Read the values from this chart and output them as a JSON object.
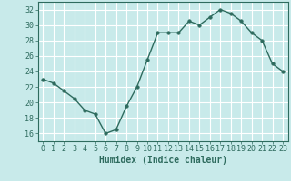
{
  "x": [
    0,
    1,
    2,
    3,
    4,
    5,
    6,
    7,
    8,
    9,
    10,
    11,
    12,
    13,
    14,
    15,
    16,
    17,
    18,
    19,
    20,
    21,
    22,
    23
  ],
  "y": [
    23,
    22.5,
    21.5,
    20.5,
    19,
    18.5,
    16,
    16.5,
    19.5,
    22,
    25.5,
    29,
    29,
    29,
    30.5,
    30,
    31,
    32,
    31.5,
    30.5,
    29,
    28,
    25,
    24
  ],
  "line_color": "#2e6b5e",
  "marker_color": "#2e6b5e",
  "bg_color": "#c8eaea",
  "grid_color": "#ffffff",
  "xlabel": "Humidex (Indice chaleur)",
  "ylim": [
    15,
    33
  ],
  "yticks": [
    16,
    18,
    20,
    22,
    24,
    26,
    28,
    30,
    32
  ],
  "xticks": [
    0,
    1,
    2,
    3,
    4,
    5,
    6,
    7,
    8,
    9,
    10,
    11,
    12,
    13,
    14,
    15,
    16,
    17,
    18,
    19,
    20,
    21,
    22,
    23
  ],
  "xlabel_fontsize": 7,
  "tick_fontsize": 6,
  "line_width": 1.0,
  "marker_size": 2.5
}
